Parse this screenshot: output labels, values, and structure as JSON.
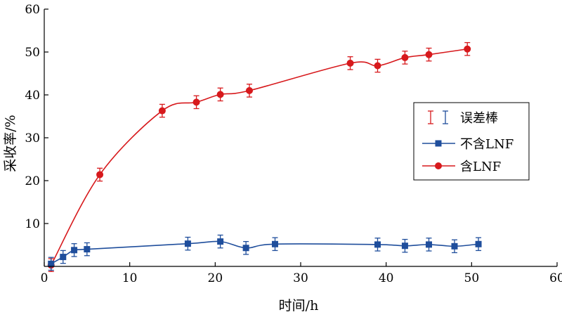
{
  "chart_data": {
    "type": "line",
    "xlabel": "时间/h",
    "ylabel": "采收率/%",
    "xlim": [
      0,
      60
    ],
    "ylim": [
      0,
      60
    ],
    "xticks": [
      0,
      10,
      20,
      30,
      40,
      50,
      60
    ],
    "yticks": [
      10,
      20,
      30,
      40,
      50,
      60
    ],
    "grid": false,
    "legend_position": "right",
    "legend": {
      "error_bar_label": "误差棒",
      "entries": [
        "不含LNF",
        "含LNF"
      ]
    },
    "series": [
      {
        "name": "含LNF",
        "color": "#d7191c",
        "marker": "circle",
        "x": [
          0.8,
          6.5,
          13.8,
          17.8,
          20.6,
          24.0,
          35.8,
          39.0,
          42.2,
          45.0,
          49.5
        ],
        "y": [
          0.3,
          21.4,
          36.3,
          38.3,
          40.1,
          41.0,
          47.4,
          46.8,
          48.7,
          49.4,
          50.7
        ],
        "error": [
          1.5,
          1.5,
          1.5,
          1.5,
          1.5,
          1.5,
          1.5,
          1.5,
          1.5,
          1.5,
          1.5
        ]
      },
      {
        "name": "不含LNF",
        "color": "#1f4e9c",
        "marker": "square",
        "x": [
          0.8,
          2.2,
          3.5,
          5.0,
          16.8,
          20.6,
          23.6,
          27.0,
          39.0,
          42.2,
          45.0,
          48.0,
          50.8
        ],
        "y": [
          0.6,
          2.2,
          3.8,
          4.0,
          5.3,
          5.8,
          4.3,
          5.2,
          5.1,
          4.8,
          5.1,
          4.7,
          5.2
        ],
        "error": [
          1.5,
          1.5,
          1.5,
          1.5,
          1.5,
          1.5,
          1.5,
          1.5,
          1.5,
          1.5,
          1.5,
          1.5,
          1.5
        ]
      }
    ]
  }
}
